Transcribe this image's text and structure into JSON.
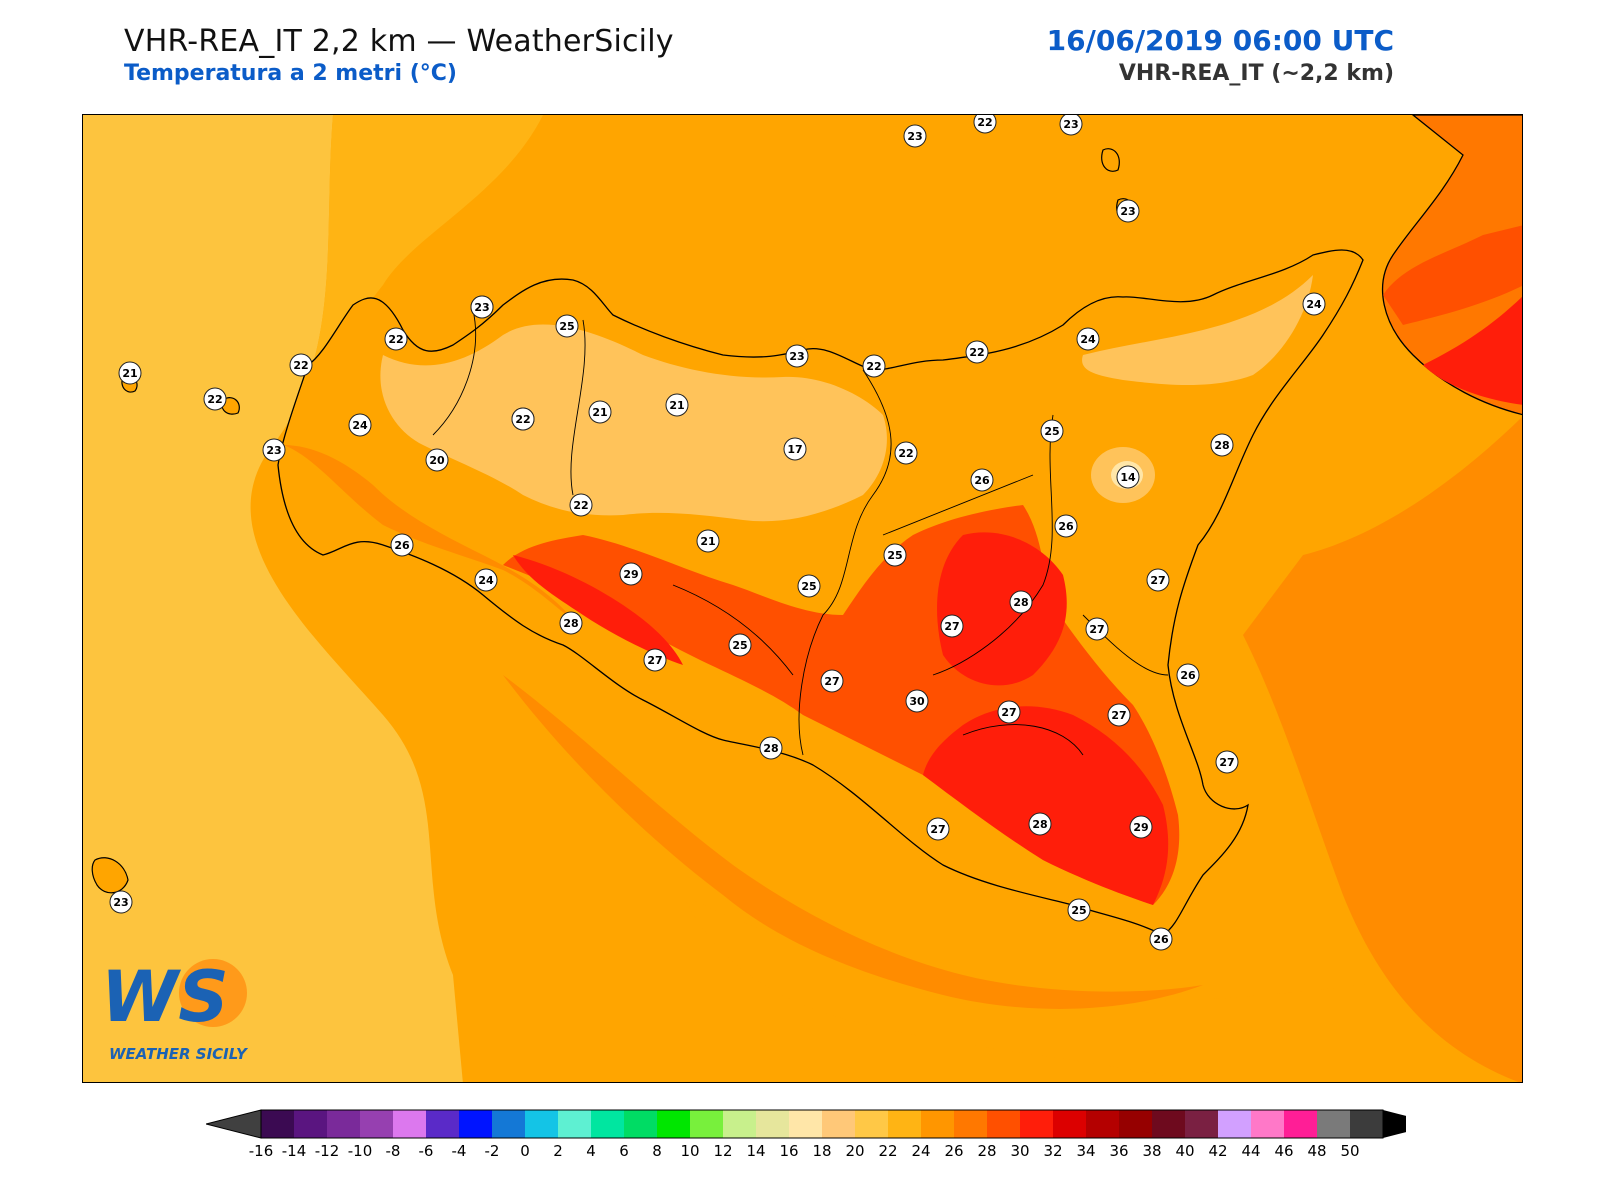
{
  "header": {
    "model_title": "VHR-REA_IT 2,2 km — WeatherSicily",
    "subtitle": "Temperatura a 2 metri (°C)",
    "datetime": "16/06/2019 06:00 UTC",
    "model_resolution": "VHR-REA_IT (~2,2 km)"
  },
  "logo": {
    "text": "WEATHER SICILY",
    "letters": "WS"
  },
  "colors": {
    "sea_far": "#fdc43e",
    "sea_mid": "#ffa500",
    "land_base": "#ff8c00",
    "land_warm": "#ff5a0e",
    "land_hot": "#ff1e0a",
    "land_cool": "#ffc35a",
    "etna_cold": "#ffe6a8",
    "coastline": "#000000"
  },
  "colorbar": {
    "ticks": [
      "-16",
      "-14",
      "-12",
      "-10",
      "-8",
      "-6",
      "-4",
      "-2",
      "0",
      "2",
      "4",
      "6",
      "8",
      "10",
      "12",
      "14",
      "16",
      "18",
      "20",
      "22",
      "24",
      "26",
      "28",
      "30",
      "32",
      "34",
      "36",
      "38",
      "40",
      "42",
      "44",
      "46",
      "48",
      "50"
    ],
    "colors": [
      "#3b0a52",
      "#5a1580",
      "#7a2a9a",
      "#9640b0",
      "#dc78ee",
      "#5a2ac8",
      "#0014ff",
      "#1478d6",
      "#14c4e6",
      "#5ef0d2",
      "#00e6a0",
      "#00dc64",
      "#00e600",
      "#78f03c",
      "#c8f08c",
      "#e6e69c",
      "#ffe6a8",
      "#ffc878",
      "#ffc846",
      "#ffb414",
      "#ff9600",
      "#ff7800",
      "#ff5000",
      "#ff1e0a",
      "#dc0000",
      "#b40000",
      "#960000",
      "#6e0a1e",
      "#7a2042",
      "#d2a0ff",
      "#ff78c8",
      "#ff1e96",
      "#7a7a7a",
      "#3c3c3c"
    ]
  },
  "stations": [
    {
      "t": "23"
    },
    {
      "t": "22"
    },
    {
      "t": "23"
    },
    {
      "t": "23"
    },
    {
      "t": "23"
    },
    {
      "t": "25"
    },
    {
      "t": "22"
    },
    {
      "t": "22"
    },
    {
      "t": "21"
    },
    {
      "t": "22"
    },
    {
      "t": "23"
    },
    {
      "t": "22"
    },
    {
      "t": "23"
    },
    {
      "t": "22"
    },
    {
      "t": "22"
    },
    {
      "t": "24"
    },
    {
      "t": "24"
    },
    {
      "t": "20"
    },
    {
      "t": "22"
    },
    {
      "t": "21"
    },
    {
      "t": "21"
    },
    {
      "t": "17"
    },
    {
      "t": "22"
    },
    {
      "t": "25"
    },
    {
      "t": "28"
    },
    {
      "t": "26"
    },
    {
      "t": "14"
    },
    {
      "t": "23"
    },
    {
      "t": "24"
    },
    {
      "t": "26"
    },
    {
      "t": "22"
    },
    {
      "t": "21"
    },
    {
      "t": "26"
    },
    {
      "t": "25"
    },
    {
      "t": "27"
    },
    {
      "t": "24"
    },
    {
      "t": "29"
    },
    {
      "t": "25"
    },
    {
      "t": "28"
    },
    {
      "t": "28"
    },
    {
      "t": "27"
    },
    {
      "t": "25"
    },
    {
      "t": "27"
    },
    {
      "t": "27"
    },
    {
      "t": "26"
    },
    {
      "t": "27"
    },
    {
      "t": "30"
    },
    {
      "t": "27"
    },
    {
      "t": "27"
    },
    {
      "t": "28"
    },
    {
      "t": "27"
    },
    {
      "t": "27"
    },
    {
      "t": "28"
    },
    {
      "t": "29"
    },
    {
      "t": "25"
    },
    {
      "t": "26"
    },
    {
      "t": "23"
    }
  ]
}
